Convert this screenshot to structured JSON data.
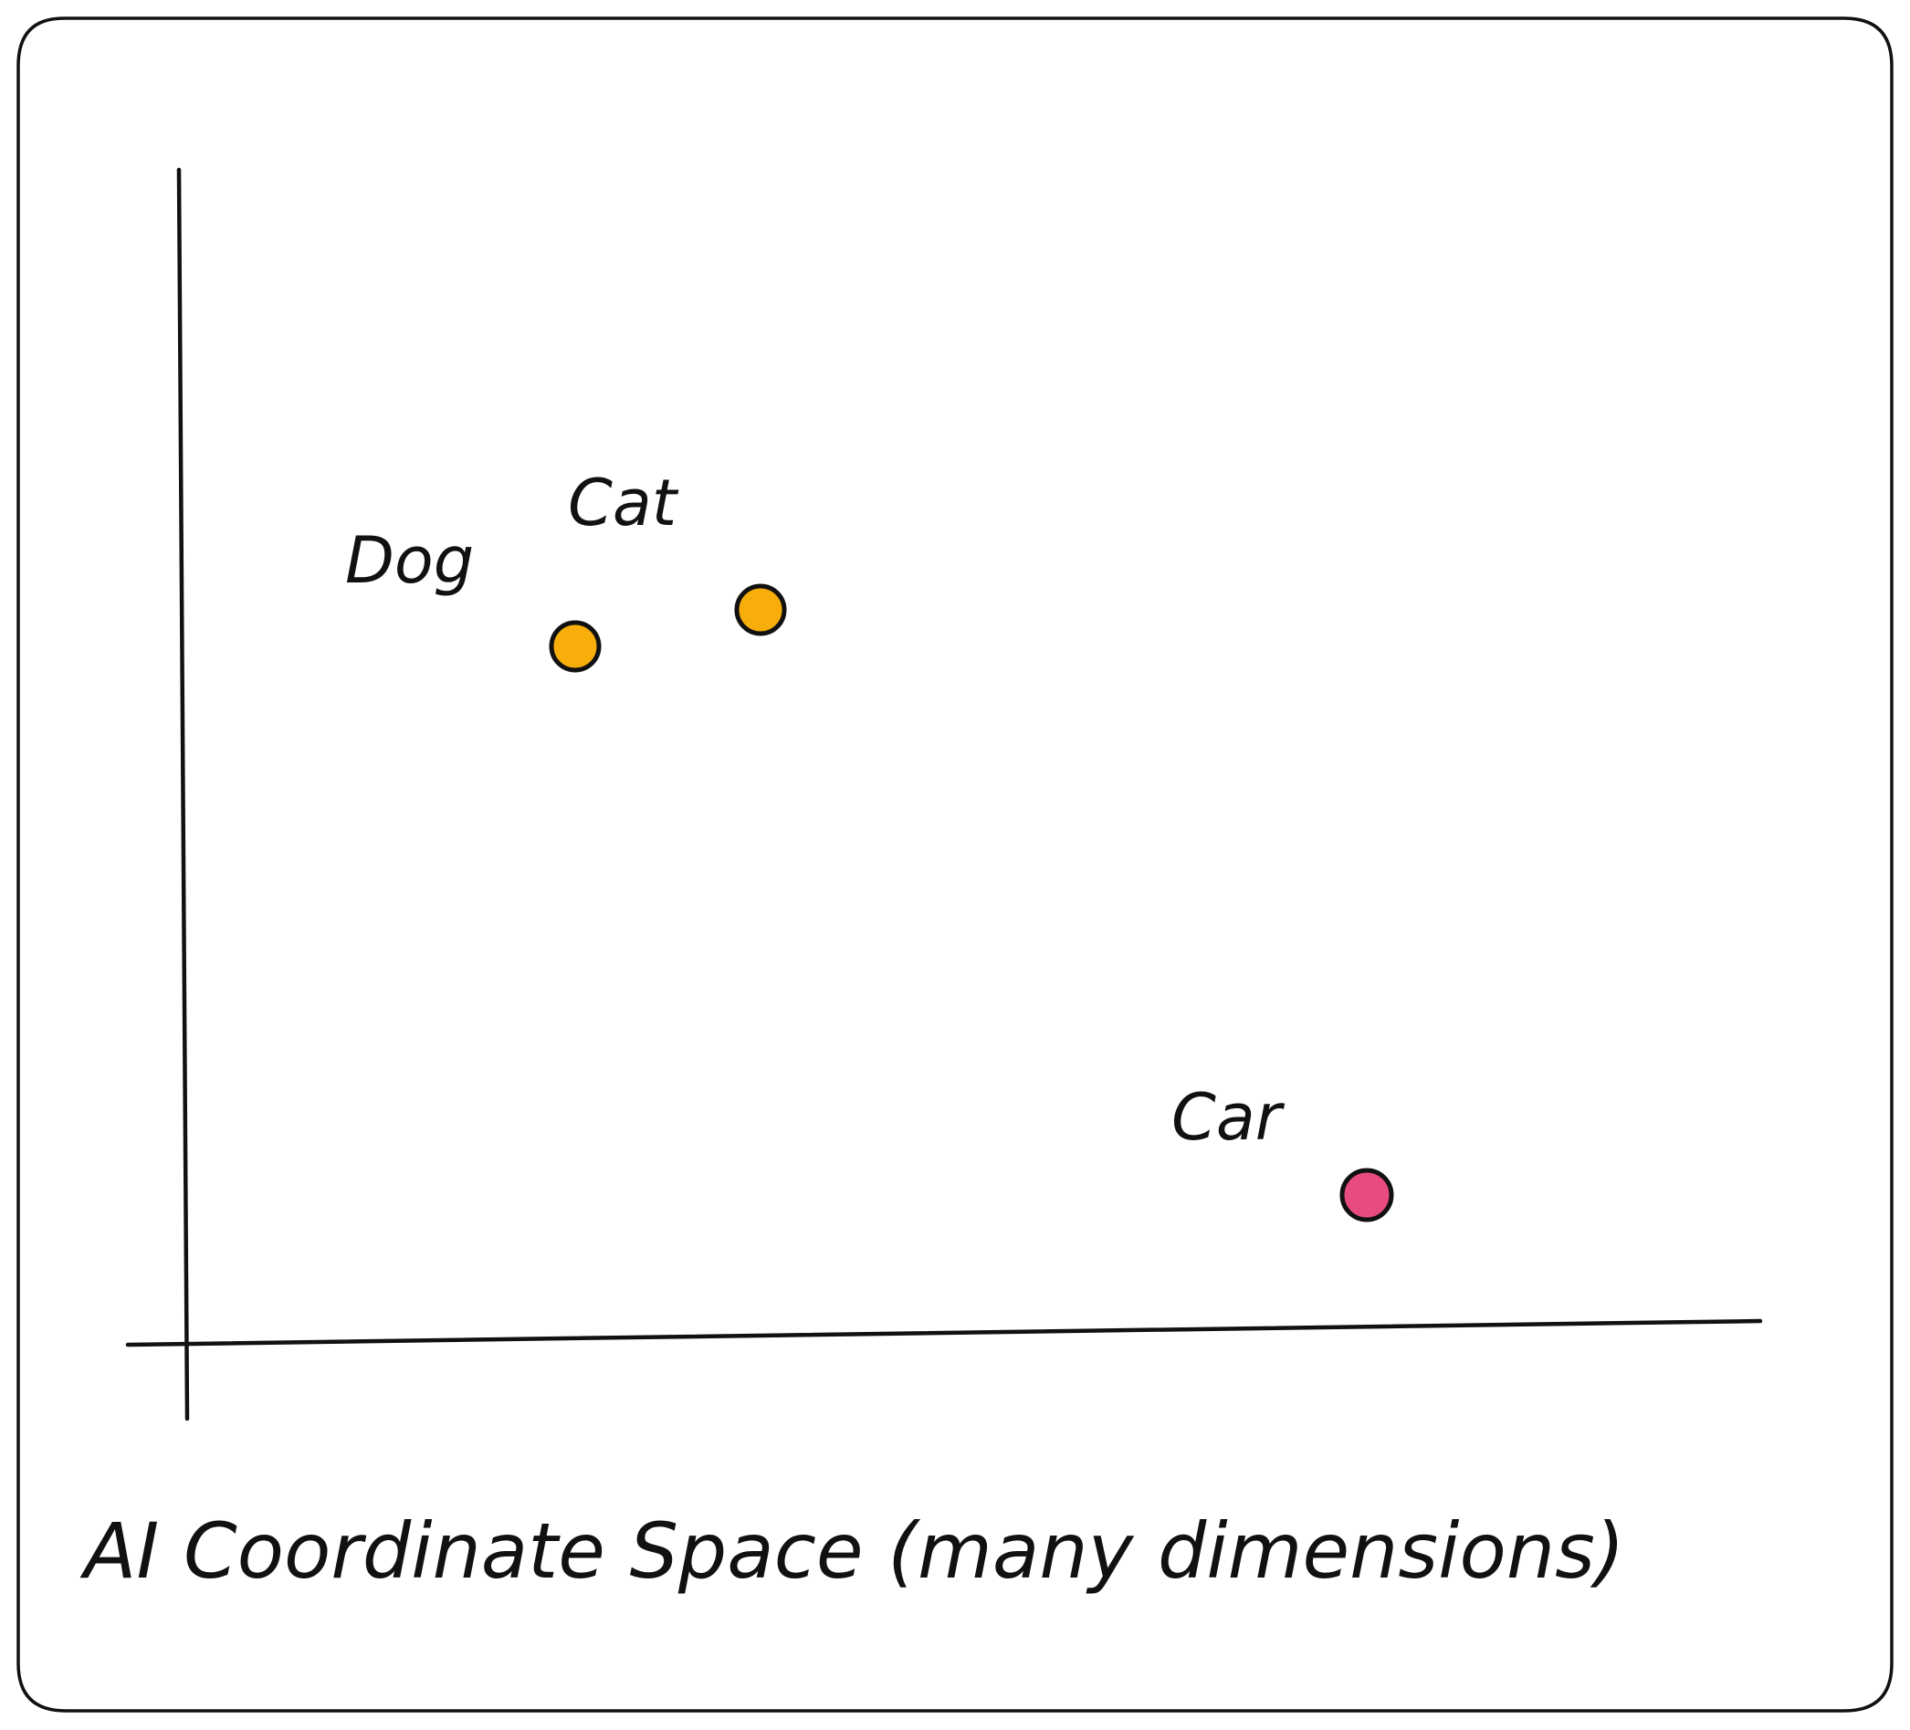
{
  "diagram": {
    "points": [
      {
        "label": "Dog",
        "color": "#f7ad0a"
      },
      {
        "label": "Cat",
        "color": "#f7ad0a"
      },
      {
        "label": "Car",
        "color": "#e84a82"
      }
    ],
    "caption": "AI Coordinate Space (many dimensions)",
    "colors": {
      "ink": "#111111",
      "background": "#ffffff"
    }
  }
}
